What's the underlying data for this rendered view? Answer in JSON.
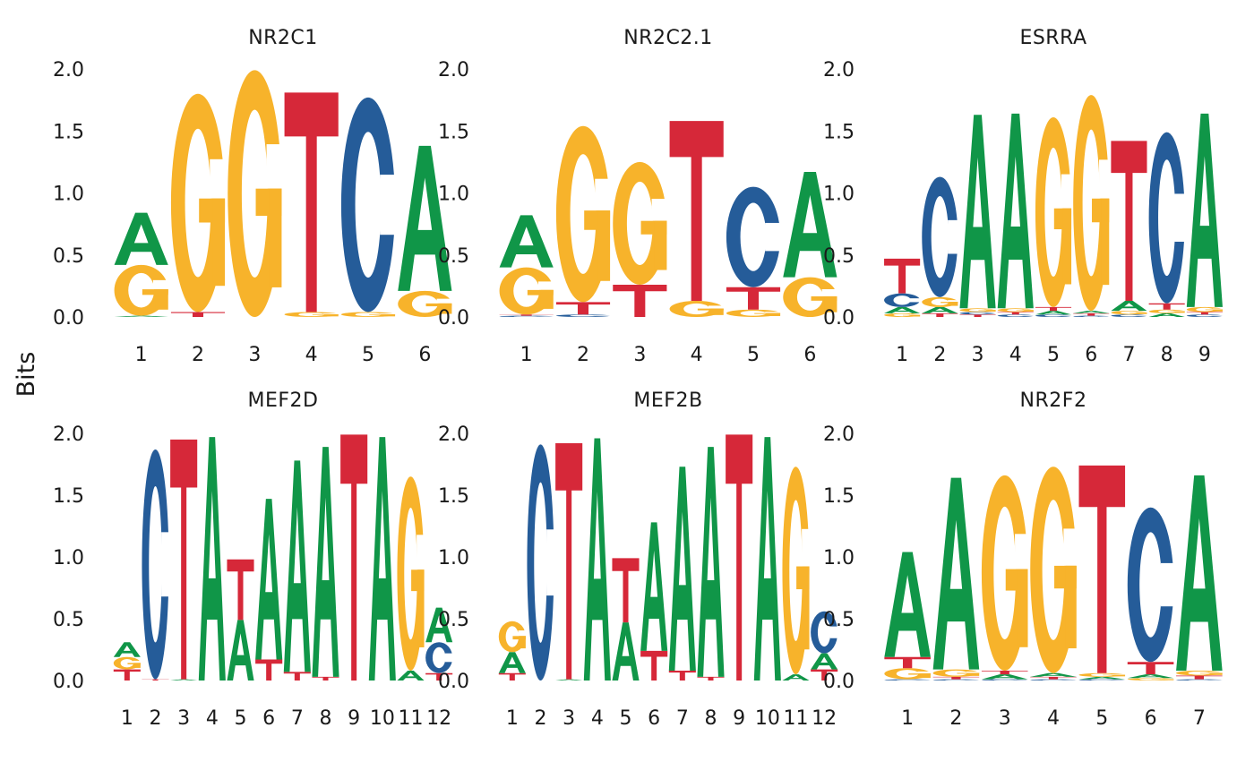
{
  "y_axis_label": "Bits",
  "colors": {
    "A": "#109648",
    "C": "#255C99",
    "G": "#F7B32B",
    "T": "#D62839"
  },
  "chart_data": [
    {
      "type": "sequence-logo",
      "title": "NR2C1",
      "ylim": [
        0,
        2.0
      ],
      "y_ticks": [
        "0.0",
        "0.5",
        "1.0",
        "1.5",
        "2.0"
      ],
      "positions": [
        "1",
        "2",
        "3",
        "4",
        "5",
        "6"
      ],
      "stacks": [
        [
          [
            "A",
            0.01
          ],
          [
            "G",
            0.41
          ],
          [
            "A",
            0.42
          ]
        ],
        [
          [
            "T",
            0.04
          ],
          [
            "G",
            1.76
          ]
        ],
        [
          [
            "G",
            1.99
          ]
        ],
        [
          [
            "G",
            0.04
          ],
          [
            "T",
            1.77
          ]
        ],
        [
          [
            "G",
            0.04
          ],
          [
            "C",
            1.73
          ]
        ],
        [
          [
            "G",
            0.21
          ],
          [
            "A",
            1.17
          ]
        ]
      ]
    },
    {
      "type": "sequence-logo",
      "title": "NR2C2.1",
      "ylim": [
        0,
        2.0
      ],
      "y_ticks": [
        "0.0",
        "0.5",
        "1.0",
        "1.5",
        "2.0"
      ],
      "positions": [
        "1",
        "2",
        "3",
        "4",
        "5",
        "6"
      ],
      "stacks": [
        [
          [
            "C",
            0.01
          ],
          [
            "T",
            0.01
          ],
          [
            "G",
            0.38
          ],
          [
            "A",
            0.42
          ]
        ],
        [
          [
            "C",
            0.02
          ],
          [
            "T",
            0.1
          ],
          [
            "G",
            1.42
          ]
        ],
        [
          [
            "T",
            0.26
          ],
          [
            "G",
            0.99
          ]
        ],
        [
          [
            "G",
            0.13
          ],
          [
            "T",
            1.45
          ]
        ],
        [
          [
            "G",
            0.06
          ],
          [
            "T",
            0.18
          ],
          [
            "C",
            0.81
          ]
        ],
        [
          [
            "G",
            0.32
          ],
          [
            "A",
            0.85
          ]
        ]
      ]
    },
    {
      "type": "sequence-logo",
      "title": "ESRRA",
      "ylim": [
        0,
        2.0
      ],
      "y_ticks": [
        "0.0",
        "0.5",
        "1.0",
        "1.5",
        "2.0"
      ],
      "positions": [
        "1",
        "2",
        "3",
        "4",
        "5",
        "6",
        "7",
        "8",
        "9"
      ],
      "stacks": [
        [
          [
            "G",
            0.03
          ],
          [
            "A",
            0.05
          ],
          [
            "C",
            0.11
          ],
          [
            "T",
            0.28
          ]
        ],
        [
          [
            "T",
            0.03
          ],
          [
            "A",
            0.05
          ],
          [
            "G",
            0.08
          ],
          [
            "C",
            0.97
          ]
        ],
        [
          [
            "T",
            0.02
          ],
          [
            "C",
            0.02
          ],
          [
            "G",
            0.03
          ],
          [
            "A",
            1.56
          ]
        ],
        [
          [
            "C",
            0.02
          ],
          [
            "T",
            0.02
          ],
          [
            "G",
            0.03
          ],
          [
            "A",
            1.57
          ]
        ],
        [
          [
            "C",
            0.02
          ],
          [
            "A",
            0.03
          ],
          [
            "T",
            0.03
          ],
          [
            "G",
            1.53
          ]
        ],
        [
          [
            "C",
            0.01
          ],
          [
            "T",
            0.02
          ],
          [
            "A",
            0.02
          ],
          [
            "G",
            1.74
          ]
        ],
        [
          [
            "C",
            0.02
          ],
          [
            "G",
            0.03
          ],
          [
            "A",
            0.08
          ],
          [
            "T",
            1.29
          ]
        ],
        [
          [
            "A",
            0.03
          ],
          [
            "G",
            0.03
          ],
          [
            "T",
            0.05
          ],
          [
            "C",
            1.38
          ]
        ],
        [
          [
            "C",
            0.02
          ],
          [
            "T",
            0.02
          ],
          [
            "G",
            0.04
          ],
          [
            "A",
            1.56
          ]
        ]
      ]
    },
    {
      "type": "sequence-logo",
      "title": "MEF2D",
      "ylim": [
        0,
        2.0
      ],
      "y_ticks": [
        "0.0",
        "0.5",
        "1.0",
        "1.5",
        "2.0"
      ],
      "positions": [
        "1",
        "2",
        "3",
        "4",
        "5",
        "6",
        "7",
        "8",
        "9",
        "10",
        "11",
        "12"
      ],
      "stacks": [
        [
          [
            "T",
            0.09
          ],
          [
            "G",
            0.1
          ],
          [
            "A",
            0.12
          ]
        ],
        [
          [
            "T",
            0.01
          ],
          [
            "C",
            1.86
          ]
        ],
        [
          [
            "A",
            0.01
          ],
          [
            "T",
            1.94
          ]
        ],
        [
          [
            "A",
            1.97
          ]
        ],
        [
          [
            "A",
            0.49
          ],
          [
            "T",
            0.49
          ]
        ],
        [
          [
            "T",
            0.17
          ],
          [
            "A",
            1.3
          ]
        ],
        [
          [
            "T",
            0.07
          ],
          [
            "A",
            1.71
          ]
        ],
        [
          [
            "T",
            0.03
          ],
          [
            "A",
            1.86
          ]
        ],
        [
          [
            "T",
            1.99
          ]
        ],
        [
          [
            "A",
            1.97
          ]
        ],
        [
          [
            "A",
            0.08
          ],
          [
            "G",
            1.57
          ]
        ],
        [
          [
            "T",
            0.06
          ],
          [
            "C",
            0.25
          ],
          [
            "A",
            0.28
          ]
        ]
      ]
    },
    {
      "type": "sequence-logo",
      "title": "MEF2B",
      "ylim": [
        0,
        2.0
      ],
      "y_ticks": [
        "0.0",
        "0.5",
        "1.0",
        "1.5",
        "2.0"
      ],
      "positions": [
        "1",
        "2",
        "3",
        "4",
        "5",
        "6",
        "7",
        "8",
        "9",
        "10",
        "11",
        "12"
      ],
      "stacks": [
        [
          [
            "T",
            0.06
          ],
          [
            "A",
            0.17
          ],
          [
            "G",
            0.25
          ]
        ],
        [
          [
            "C",
            1.91
          ]
        ],
        [
          [
            "A",
            0.01
          ],
          [
            "T",
            1.91
          ]
        ],
        [
          [
            "A",
            1.96
          ]
        ],
        [
          [
            "A",
            0.47
          ],
          [
            "T",
            0.52
          ]
        ],
        [
          [
            "T",
            0.24
          ],
          [
            "A",
            1.04
          ]
        ],
        [
          [
            "T",
            0.08
          ],
          [
            "A",
            1.65
          ]
        ],
        [
          [
            "T",
            0.03
          ],
          [
            "A",
            1.86
          ]
        ],
        [
          [
            "T",
            1.99
          ]
        ],
        [
          [
            "A",
            1.97
          ]
        ],
        [
          [
            "A",
            0.05
          ],
          [
            "G",
            1.68
          ]
        ],
        [
          [
            "T",
            0.09
          ],
          [
            "A",
            0.13
          ],
          [
            "C",
            0.34
          ]
        ]
      ]
    },
    {
      "type": "sequence-logo",
      "title": "NR2F2",
      "ylim": [
        0,
        2.0
      ],
      "y_ticks": [
        "0.0",
        "0.5",
        "1.0",
        "1.5",
        "2.0"
      ],
      "positions": [
        "1",
        "2",
        "3",
        "4",
        "5",
        "6",
        "7"
      ],
      "stacks": [
        [
          [
            "C",
            0.01
          ],
          [
            "G",
            0.09
          ],
          [
            "T",
            0.09
          ],
          [
            "A",
            0.85
          ]
        ],
        [
          [
            "C",
            0.01
          ],
          [
            "T",
            0.02
          ],
          [
            "G",
            0.06
          ],
          [
            "A",
            1.55
          ]
        ],
        [
          [
            "C",
            0.01
          ],
          [
            "A",
            0.04
          ],
          [
            "T",
            0.03
          ],
          [
            "G",
            1.58
          ]
        ],
        [
          [
            "C",
            0.01
          ],
          [
            "T",
            0.02
          ],
          [
            "A",
            0.03
          ],
          [
            "G",
            1.67
          ]
        ],
        [
          [
            "C",
            0.01
          ],
          [
            "A",
            0.02
          ],
          [
            "G",
            0.03
          ],
          [
            "T",
            1.68
          ]
        ],
        [
          [
            "G",
            0.02
          ],
          [
            "A",
            0.03
          ],
          [
            "T",
            0.1
          ],
          [
            "C",
            1.25
          ]
        ],
        [
          [
            "C",
            0.01
          ],
          [
            "T",
            0.03
          ],
          [
            "G",
            0.04
          ],
          [
            "A",
            1.58
          ]
        ]
      ]
    }
  ]
}
